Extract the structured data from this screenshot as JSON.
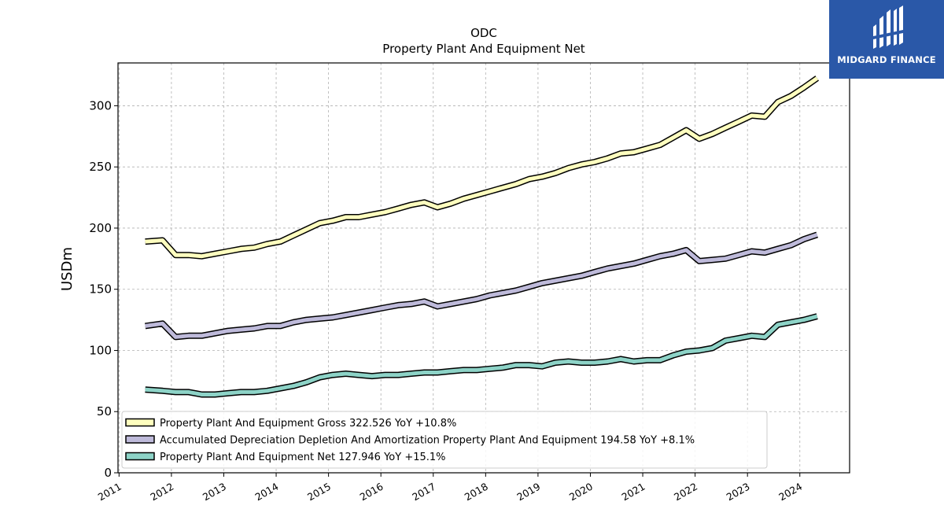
{
  "brand": {
    "name": "MIDGARD FINANCE",
    "bg_color": "#2a58a8",
    "icon": "midgard-logo-icon"
  },
  "chart_data": {
    "type": "line",
    "title": "ODC",
    "subtitle": "Property Plant And Equipment Net",
    "xlabel": "",
    "ylabel": "USDm",
    "xlim": [
      2010.98,
      2024.95
    ],
    "ylim": [
      0,
      335
    ],
    "yticks": [
      0,
      50,
      100,
      150,
      200,
      250,
      300
    ],
    "xticks": [
      "2011",
      "2012",
      "2013",
      "2014",
      "2015",
      "2016",
      "2017",
      "2018",
      "2019",
      "2020",
      "2021",
      "2022",
      "2023",
      "2024"
    ],
    "grid": true,
    "legend_position": "lower-left",
    "x": [
      2011.5,
      2011.83,
      2012.08,
      2012.33,
      2012.58,
      2012.83,
      2013.08,
      2013.33,
      2013.58,
      2013.83,
      2014.08,
      2014.33,
      2014.58,
      2014.83,
      2015.08,
      2015.33,
      2015.58,
      2015.83,
      2016.08,
      2016.33,
      2016.58,
      2016.83,
      2017.08,
      2017.33,
      2017.58,
      2017.83,
      2018.08,
      2018.33,
      2018.58,
      2018.83,
      2019.08,
      2019.33,
      2019.58,
      2019.83,
      2020.08,
      2020.33,
      2020.58,
      2020.83,
      2021.08,
      2021.33,
      2021.58,
      2021.83,
      2022.08,
      2022.33,
      2022.58,
      2022.83,
      2023.08,
      2023.33,
      2023.58,
      2023.83,
      2024.08,
      2024.33
    ],
    "series": [
      {
        "name": "Property Plant And Equipment Gross  322.526 YoY +10.8%",
        "color": "#ffffbf",
        "values": [
          189,
          190,
          178,
          178,
          177,
          179,
          181,
          183,
          184,
          187,
          189,
          194,
          199,
          204,
          206,
          209,
          209,
          211,
          213,
          216,
          219,
          221,
          217,
          220,
          224,
          227,
          230,
          233,
          236,
          240,
          242,
          245,
          249,
          252,
          254,
          257,
          261,
          262,
          265,
          268,
          274,
          280,
          273,
          277,
          282,
          287,
          292,
          291,
          303,
          308,
          315,
          322.5
        ]
      },
      {
        "name": "Accumulated Depreciation Depletion And Amortization Property Plant And Equipment  194.58 YoY +8.1%",
        "color": "#bebada",
        "values": [
          120,
          122,
          111,
          112,
          112,
          114,
          116,
          117,
          118,
          120,
          120,
          123,
          125,
          126,
          127,
          129,
          131,
          133,
          135,
          137,
          138,
          140,
          136,
          138,
          140,
          142,
          145,
          147,
          149,
          152,
          155,
          157,
          159,
          161,
          164,
          167,
          169,
          171,
          174,
          177,
          179,
          182,
          173,
          174,
          175,
          178,
          181,
          180,
          183,
          186,
          191,
          194.6
        ]
      },
      {
        "name": "Property Plant And Equipment Net  127.946 YoY +15.1%",
        "color": "#8dd3c7",
        "values": [
          68,
          67,
          66,
          66,
          64,
          64,
          65,
          66,
          66,
          67,
          69,
          71,
          74,
          78,
          80,
          81,
          80,
          79,
          80,
          80,
          81,
          82,
          82,
          83,
          84,
          84,
          85,
          86,
          88,
          88,
          87,
          90,
          91,
          90,
          90,
          91,
          93,
          91,
          92,
          92,
          96,
          99,
          100,
          102,
          108,
          110,
          112,
          111,
          121,
          123,
          125,
          127.9
        ]
      }
    ]
  }
}
